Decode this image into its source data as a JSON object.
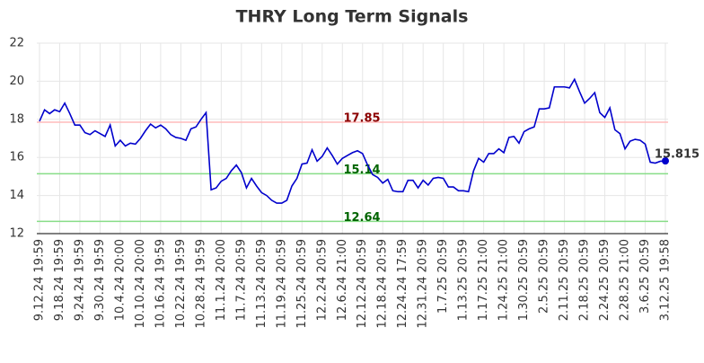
{
  "chart_data": {
    "type": "line",
    "title": "THRY Long Term Signals",
    "categories": [
      "9.12.24 19:59",
      null,
      null,
      null,
      "9.18.24 19:59",
      null,
      null,
      null,
      "9.24.24 19:59",
      null,
      null,
      null,
      "9.30.24 19:59",
      null,
      null,
      null,
      "10.4.24 20:00",
      null,
      null,
      null,
      "10.10.24 20:00",
      null,
      null,
      null,
      "10.16.24 19:59",
      null,
      null,
      null,
      "10.22.24 19:59",
      null,
      null,
      null,
      "10.28.24 19:59",
      null,
      null,
      null,
      "11.1.24 20:00",
      null,
      null,
      null,
      "11.7.24 20:59",
      null,
      null,
      null,
      "11.13.24 20:59",
      null,
      null,
      null,
      "11.19.24 20:59",
      null,
      null,
      null,
      "11.25.24 20:59",
      null,
      null,
      null,
      "12.2.24 20:59",
      null,
      null,
      null,
      "12.6.24 21:00",
      null,
      null,
      null,
      "12.12.24 20:59",
      null,
      null,
      null,
      "12.18.24 20:59",
      null,
      null,
      null,
      "12.24.24 17:59",
      null,
      null,
      null,
      "12.31.24 20:59",
      null,
      null,
      null,
      "1.7.25 20:59",
      null,
      null,
      null,
      "1.13.25 20:59",
      null,
      null,
      null,
      "1.17.25 21:00",
      null,
      null,
      null,
      "1.24.25 21:00",
      null,
      null,
      null,
      "1.30.25 20:59",
      null,
      null,
      null,
      "2.5.25 20:59",
      null,
      null,
      null,
      "2.11.25 20:59",
      null,
      null,
      null,
      "2.18.25 20:59",
      null,
      null,
      null,
      "2.24.25 20:59",
      null,
      null,
      null,
      "2.28.25 21:00",
      null,
      null,
      null,
      "3.6.25 20:59",
      null,
      null,
      null,
      "3.12.25 19:58"
    ],
    "values": [
      17.9,
      18.5,
      18.3,
      18.5,
      18.4,
      18.85,
      18.3,
      17.7,
      17.7,
      17.3,
      17.2,
      17.4,
      17.25,
      17.1,
      17.7,
      16.6,
      16.9,
      16.6,
      16.75,
      16.7,
      17.0,
      17.4,
      17.75,
      17.55,
      17.7,
      17.5,
      17.2,
      17.05,
      17.0,
      16.9,
      17.5,
      17.6,
      18.0,
      18.35,
      14.3,
      14.4,
      14.75,
      14.9,
      15.3,
      15.6,
      15.2,
      14.4,
      14.9,
      14.5,
      14.15,
      14.0,
      13.75,
      13.6,
      13.6,
      13.75,
      14.5,
      14.9,
      15.65,
      15.7,
      16.4,
      15.8,
      16.05,
      16.5,
      16.1,
      15.65,
      15.95,
      16.1,
      16.25,
      16.35,
      16.2,
      15.6,
      15.1,
      14.95,
      14.65,
      14.85,
      14.25,
      14.2,
      14.2,
      14.8,
      14.8,
      14.4,
      14.8,
      14.55,
      14.9,
      14.95,
      14.9,
      14.45,
      14.45,
      14.25,
      14.25,
      14.2,
      15.3,
      15.95,
      15.75,
      16.2,
      16.2,
      16.45,
      16.25,
      17.05,
      17.1,
      16.75,
      17.35,
      17.5,
      17.6,
      18.55,
      18.55,
      18.6,
      19.7,
      19.7,
      19.7,
      19.65,
      20.1,
      19.45,
      18.85,
      19.1,
      19.4,
      18.35,
      18.1,
      18.6,
      17.45,
      17.25,
      16.45,
      16.85,
      16.95,
      16.9,
      16.7,
      15.75,
      15.7,
      15.8,
      15.815
    ],
    "color": "#0000cc",
    "hlines": [
      {
        "value": 17.85,
        "color": "#ffbbbb",
        "label_color": "#8b0000"
      },
      {
        "value": 15.14,
        "color": "#88dd88",
        "label_color": "#006400"
      },
      {
        "value": 12.64,
        "color": "#88dd88",
        "label_color": "#006400"
      }
    ],
    "ylim": [
      12,
      22
    ],
    "yticks": [
      12,
      14,
      16,
      18,
      20,
      22
    ],
    "grid": true
  }
}
